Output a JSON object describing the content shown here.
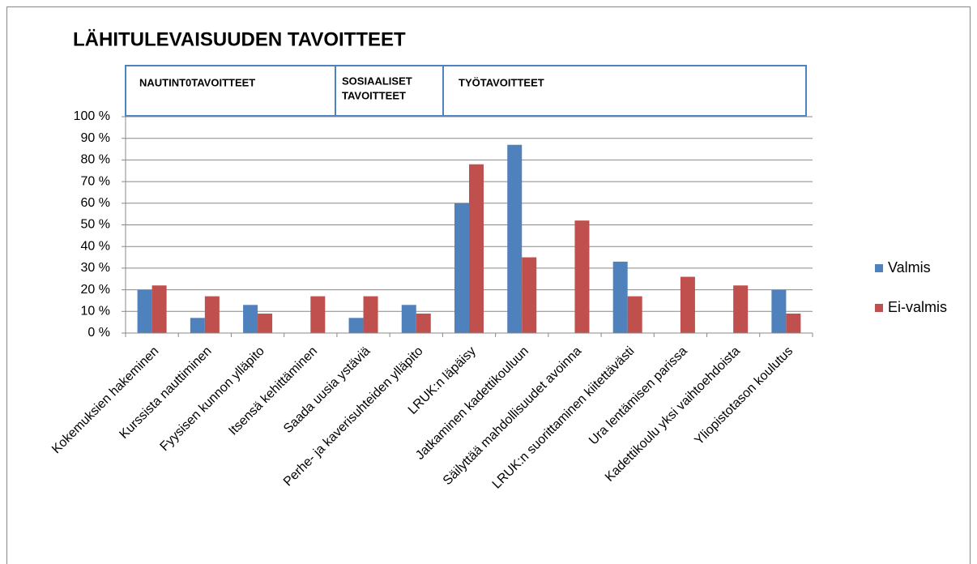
{
  "chart_data": {
    "type": "bar",
    "title": "LÄHITULEVAISUUDEN TAVOITTEET",
    "groups": [
      {
        "label": [
          "NAUTINT0TAVOITTEET"
        ]
      },
      {
        "label": [
          "SOSIAALISET",
          "TAVOITTEET"
        ]
      },
      {
        "label": [
          "TYÖTAVOITTEET"
        ]
      }
    ],
    "categories": [
      "Kokemuksien hakeminen",
      "Kurssista nauttiminen",
      "Fyysisen kunnon ylläpito",
      "Itsensä kehittäminen",
      "Saada uusia ystäviä",
      "Perhe- ja kaverisuhteiden ylläpito",
      "LRUK:n läpäisy",
      "Jatkaminen kadettikouluun",
      "Säilyttää mahdollisuudet avoinna",
      "LRUK:n suorittaminen kiitettävästi",
      "Ura lentämisen parissa",
      "Kadettikoulu yksi vaihtoehdoista",
      "Yliopistotason koulutus"
    ],
    "series": [
      {
        "name": "Valmis",
        "color": "#4f81bd",
        "values": [
          20,
          7,
          13,
          0,
          7,
          13,
          60,
          87,
          0,
          33,
          0,
          0,
          20
        ]
      },
      {
        "name": "Ei-valmis",
        "color": "#c0504d",
        "values": [
          22,
          17,
          9,
          17,
          17,
          9,
          78,
          35,
          52,
          17,
          26,
          22,
          9
        ]
      }
    ],
    "ylim": [
      0,
      100
    ],
    "yticks": [
      {
        "value": 0,
        "label": "0 %"
      },
      {
        "value": 10,
        "label": "10 %"
      },
      {
        "value": 20,
        "label": "20 %"
      },
      {
        "value": 30,
        "label": "30 %"
      },
      {
        "value": 40,
        "label": "40 %"
      },
      {
        "value": 50,
        "label": "50 %"
      },
      {
        "value": 60,
        "label": "60 %"
      },
      {
        "value": 70,
        "label": "70 %"
      },
      {
        "value": 80,
        "label": "80 %"
      },
      {
        "value": 90,
        "label": "90 %"
      },
      {
        "value": 100,
        "label": "100 %"
      }
    ],
    "grid": true,
    "legend": "right"
  }
}
